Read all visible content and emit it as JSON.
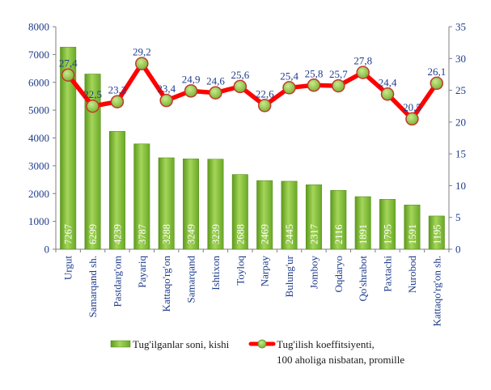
{
  "chart_data": {
    "type": "bar+line",
    "categories": [
      "Urgut",
      "Samarqand sh.",
      "Pastdarg'om",
      "Payariq",
      "Kattaqo'rg'on",
      "Samarqand",
      "Ishtixon",
      "Toyloq",
      "Narpay",
      "Bulung'ur",
      "Jomboy",
      "Oqdaryo",
      "Qo'shrabot",
      "Paxtachi",
      "Nurobod",
      "Kattaqo'rg'on sh."
    ],
    "series": [
      {
        "name": "Tug'ilganlar soni, kishi",
        "type": "bar",
        "axis": "left",
        "color": "#8cc63f",
        "values": [
          7267,
          6299,
          4239,
          3787,
          3288,
          3249,
          3239,
          2688,
          2469,
          2445,
          2317,
          2116,
          1891,
          1795,
          1591,
          1195
        ]
      },
      {
        "name": "Tug'ilish koeffitsiyenti,",
        "name_line2": "100 aholiga nisbatan, promille",
        "type": "line",
        "axis": "right",
        "color": "#ff0000",
        "marker_color": "#8cc63f",
        "values": [
          27.4,
          22.5,
          23.2,
          29.2,
          23.4,
          24.9,
          24.6,
          25.6,
          22.6,
          25.4,
          25.8,
          25.7,
          27.8,
          24.4,
          20.5,
          26.1
        ],
        "labels": [
          "27,4",
          "22,5",
          "23,2",
          "29,2",
          "23,4",
          "24,9",
          "24,6",
          "25,6",
          "22,6",
          "25,4",
          "25,8",
          "25,7",
          "27,8",
          "24,4",
          "20,5",
          "26,1"
        ]
      }
    ],
    "y_left": {
      "min": 0,
      "max": 8000,
      "ticks": [
        "0",
        "1000",
        "2000",
        "3000",
        "4000",
        "5000",
        "6000",
        "7000",
        "8000"
      ]
    },
    "y_right": {
      "min": 0,
      "max": 35,
      "ticks": [
        "0",
        "5",
        "10",
        "15",
        "20",
        "25",
        "30",
        "35"
      ]
    },
    "grid": false,
    "legend_position": "bottom"
  }
}
